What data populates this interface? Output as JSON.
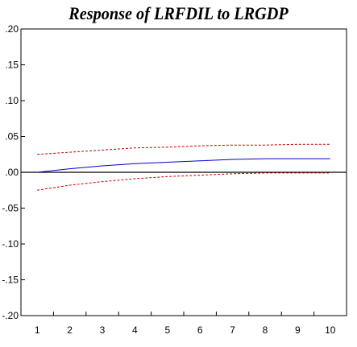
{
  "chart_data": {
    "type": "line",
    "title": "Response of LRFDIL to LRGDP",
    "xlabel": "",
    "ylabel": "",
    "x": [
      1,
      2,
      3,
      4,
      5,
      6,
      7,
      8,
      9,
      10
    ],
    "x_tick_labels": [
      "1",
      "2",
      "3",
      "4",
      "5",
      "6",
      "7",
      "8",
      "9",
      "10"
    ],
    "y_tick_values": [
      0.2,
      0.15,
      0.1,
      0.05,
      0.0,
      -0.05,
      -0.1,
      -0.15,
      -0.2
    ],
    "y_tick_labels": [
      ".20",
      ".15",
      ".10",
      ".05",
      ".00",
      "-.05",
      "-.10",
      "-.15",
      "-.20"
    ],
    "xlim": [
      0.5,
      10.5
    ],
    "ylim": [
      -0.2,
      0.2
    ],
    "grid": false,
    "zero_line": true,
    "series": [
      {
        "role": "response",
        "style": "solid",
        "color": "#0000cc",
        "values": [
          0.0,
          0.005,
          0.009,
          0.012,
          0.014,
          0.016,
          0.018,
          0.019,
          0.019,
          0.019
        ]
      },
      {
        "role": "upper-band",
        "style": "dashed",
        "color": "#cc0000",
        "values": [
          0.025,
          0.028,
          0.031,
          0.034,
          0.035,
          0.037,
          0.038,
          0.038,
          0.039,
          0.039
        ]
      },
      {
        "role": "lower-band",
        "style": "dashed",
        "color": "#cc0000",
        "values": [
          -0.025,
          -0.018,
          -0.013,
          -0.009,
          -0.006,
          -0.004,
          -0.002,
          -0.001,
          -0.001,
          -0.001
        ]
      }
    ]
  }
}
